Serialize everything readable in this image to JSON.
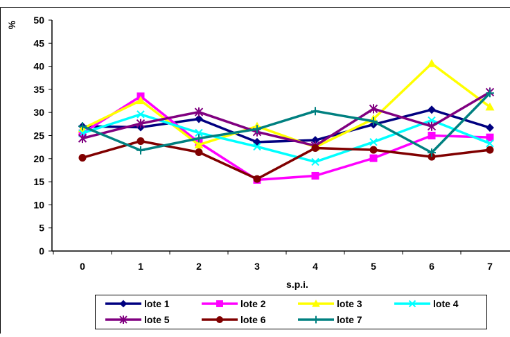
{
  "chart_data": {
    "type": "line",
    "title": "",
    "xlabel": "s.p.i.",
    "ylabel": "%",
    "categories": [
      "0",
      "1",
      "2",
      "3",
      "4",
      "5",
      "6",
      "7"
    ],
    "ylim": [
      0,
      50
    ],
    "yticks": [
      0,
      5,
      10,
      15,
      20,
      25,
      30,
      35,
      40,
      45,
      50
    ],
    "grid": false,
    "legend_position": "bottom",
    "series": [
      {
        "name": "lote 1",
        "color": "#000080",
        "marker": "diamond",
        "values": [
          27.0,
          26.8,
          28.6,
          23.6,
          24.0,
          27.4,
          30.6,
          26.7
        ]
      },
      {
        "name": "lote 2",
        "color": "#ff00ff",
        "marker": "square",
        "values": [
          25.5,
          33.5,
          23.5,
          15.4,
          16.3,
          20.1,
          25.0,
          24.6
        ]
      },
      {
        "name": "lote 3",
        "color": "#ffff00",
        "marker": "triangle",
        "values": [
          26.5,
          32.6,
          23.0,
          27.0,
          22.5,
          28.6,
          40.6,
          31.2
        ]
      },
      {
        "name": "lote 4",
        "color": "#00ffff",
        "marker": "x",
        "values": [
          25.5,
          29.6,
          25.6,
          22.6,
          19.3,
          23.6,
          28.3,
          23.3
        ]
      },
      {
        "name": "lote 5",
        "color": "#800080",
        "marker": "asterisk",
        "values": [
          24.4,
          27.6,
          30.1,
          25.8,
          22.8,
          30.8,
          27.0,
          34.4
        ]
      },
      {
        "name": "lote 6",
        "color": "#800000",
        "marker": "circle",
        "values": [
          20.2,
          23.8,
          21.4,
          15.6,
          22.3,
          21.9,
          20.4,
          21.9
        ]
      },
      {
        "name": "lote 7",
        "color": "#008080",
        "marker": "plus",
        "values": [
          27.0,
          21.8,
          24.4,
          26.4,
          30.3,
          28.1,
          21.3,
          34.2
        ]
      }
    ]
  }
}
